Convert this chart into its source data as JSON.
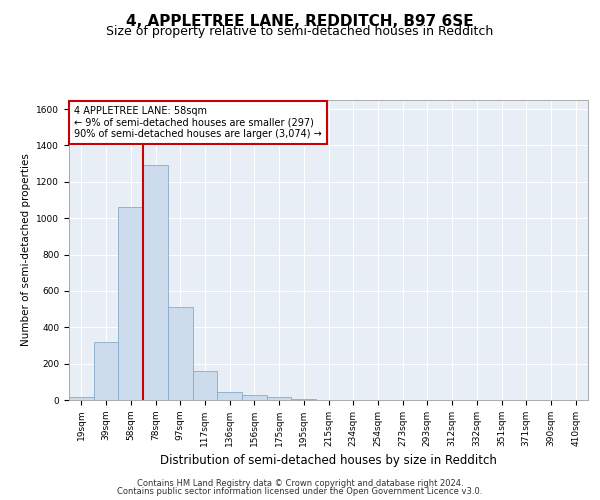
{
  "title": "4, APPLETREE LANE, REDDITCH, B97 6SE",
  "subtitle": "Size of property relative to semi-detached houses in Redditch",
  "xlabel": "Distribution of semi-detached houses by size in Redditch",
  "ylabel": "Number of semi-detached properties",
  "bar_labels": [
    "19sqm",
    "39sqm",
    "58sqm",
    "78sqm",
    "97sqm",
    "117sqm",
    "136sqm",
    "156sqm",
    "175sqm",
    "195sqm",
    "215sqm",
    "234sqm",
    "254sqm",
    "273sqm",
    "293sqm",
    "312sqm",
    "332sqm",
    "351sqm",
    "371sqm",
    "390sqm",
    "410sqm"
  ],
  "bar_values": [
    15,
    320,
    1060,
    1290,
    510,
    160,
    45,
    25,
    15,
    7,
    0,
    0,
    0,
    0,
    0,
    0,
    0,
    0,
    0,
    0,
    0
  ],
  "bar_color": "#ccdcec",
  "bar_edge_color": "#88aac8",
  "vline_x": 2.5,
  "vline_color": "#cc0000",
  "annotation_text": "4 APPLETREE LANE: 58sqm\n← 9% of semi-detached houses are smaller (297)\n90% of semi-detached houses are larger (3,074) →",
  "annotation_box_facecolor": "#ffffff",
  "annotation_box_edgecolor": "#cc0000",
  "ylim": [
    0,
    1650
  ],
  "yticks": [
    0,
    200,
    400,
    600,
    800,
    1000,
    1200,
    1400,
    1600
  ],
  "bg_color": "#ffffff",
  "plot_bg_color": "#e8eef5",
  "grid_color": "#ffffff",
  "footer_line1": "Contains HM Land Registry data © Crown copyright and database right 2024.",
  "footer_line2": "Contains public sector information licensed under the Open Government Licence v3.0.",
  "title_fontsize": 11,
  "subtitle_fontsize": 9,
  "xlabel_fontsize": 8.5,
  "ylabel_fontsize": 7.5,
  "tick_fontsize": 6.5,
  "annotation_fontsize": 7,
  "footer_fontsize": 6
}
